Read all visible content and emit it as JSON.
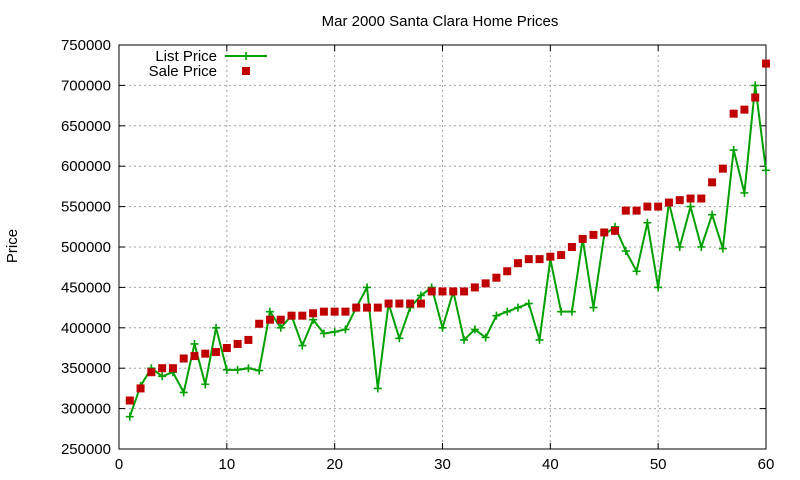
{
  "chart_data": {
    "type": "line",
    "title": "Mar 2000 Santa Clara Home Prices",
    "xlabel": "",
    "ylabel": "Price",
    "xlim": [
      0,
      60
    ],
    "ylim": [
      250000,
      750000
    ],
    "x_ticks": [
      0,
      10,
      20,
      30,
      40,
      50,
      60
    ],
    "y_ticks": [
      250000,
      300000,
      350000,
      400000,
      450000,
      500000,
      550000,
      600000,
      650000,
      700000,
      750000
    ],
    "grid": true,
    "legend_position": "top-left",
    "x": [
      1,
      2,
      3,
      4,
      5,
      6,
      7,
      8,
      9,
      10,
      11,
      12,
      13,
      14,
      15,
      16,
      17,
      18,
      19,
      20,
      21,
      22,
      23,
      24,
      25,
      26,
      27,
      28,
      29,
      30,
      31,
      32,
      33,
      34,
      35,
      36,
      37,
      38,
      39,
      40,
      41,
      42,
      43,
      44,
      45,
      46,
      47,
      48,
      49,
      50,
      51,
      52,
      53,
      54,
      55,
      56,
      57,
      58,
      59,
      60
    ],
    "series": [
      {
        "name": "List Price",
        "style": "linespoints",
        "color": "#00a000",
        "values": [
          290000,
          328000,
          350000,
          340000,
          345000,
          320000,
          380000,
          330000,
          400000,
          348000,
          348000,
          350000,
          347000,
          420000,
          400000,
          415000,
          378000,
          410000,
          393000,
          395000,
          398000,
          425000,
          450000,
          325000,
          430000,
          387000,
          425000,
          440000,
          450000,
          400000,
          445000,
          385000,
          398000,
          388000,
          415000,
          420000,
          425000,
          430000,
          385000,
          485000,
          420000,
          420000,
          510000,
          425000,
          515000,
          525000,
          495000,
          470000,
          530000,
          450000,
          555000,
          500000,
          550000,
          500000,
          540000,
          498000,
          620000,
          567000,
          700000,
          595000
        ]
      },
      {
        "name": "Sale Price",
        "style": "points",
        "color": "#c00000",
        "values": [
          310000,
          325000,
          345000,
          350000,
          350000,
          362000,
          365000,
          368000,
          370000,
          375000,
          380000,
          385000,
          405000,
          410000,
          410000,
          415000,
          415000,
          418000,
          420000,
          420000,
          420000,
          425000,
          425000,
          425000,
          430000,
          430000,
          430000,
          430000,
          445000,
          445000,
          445000,
          445000,
          450000,
          455000,
          462000,
          470000,
          480000,
          485000,
          485000,
          488000,
          490000,
          500000,
          510000,
          515000,
          518000,
          520000,
          545000,
          545000,
          550000,
          550000,
          555000,
          558000,
          560000,
          560000,
          580000,
          597000,
          665000,
          670000,
          685000,
          727000
        ]
      }
    ]
  }
}
